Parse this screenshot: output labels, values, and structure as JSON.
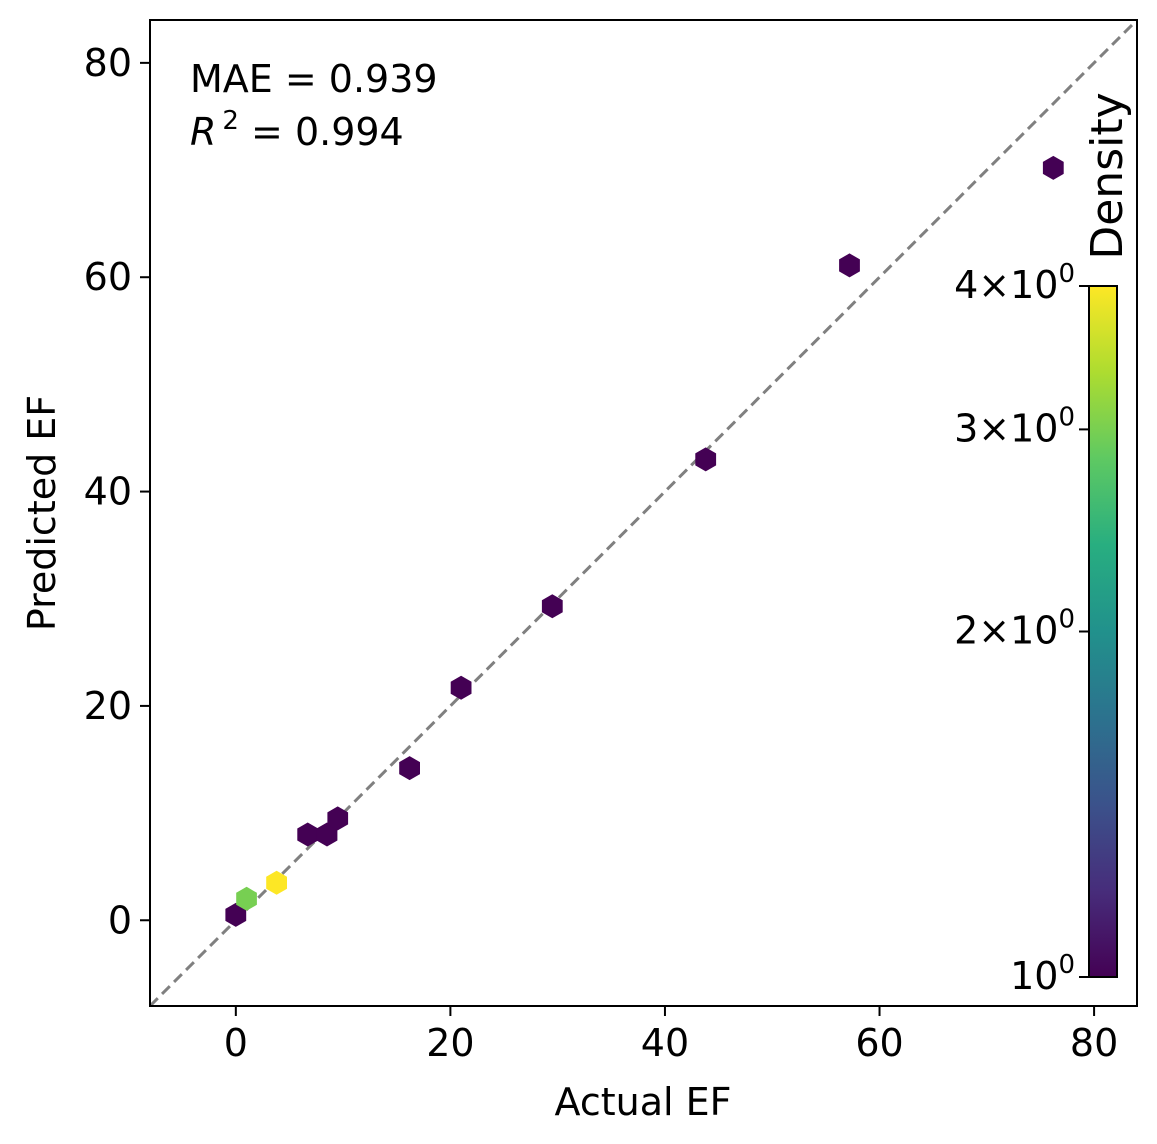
{
  "chart_data": {
    "type": "hexbin",
    "xlabel": "Actual EF",
    "ylabel": "Predicted EF",
    "xlim": [
      -8,
      84
    ],
    "ylim": [
      -8,
      84
    ],
    "xticks": [
      0,
      20,
      40,
      60,
      80
    ],
    "yticks": [
      0,
      20,
      40,
      60,
      80
    ],
    "xtick_labels": [
      "0",
      "20",
      "40",
      "60",
      "80"
    ],
    "ytick_labels": [
      "0",
      "20",
      "40",
      "60",
      "80"
    ],
    "annotations": {
      "mae": "MAE = 0.939",
      "r2_symbol": "R",
      "r2_exp": "2",
      "r2_value": " = 0.994"
    },
    "reference_line": {
      "style": "dashed",
      "color": "#808080",
      "from": [
        -8,
        -8
      ],
      "to": [
        84,
        84
      ]
    },
    "colorbar": {
      "title": "Density",
      "scale": "log",
      "range": [
        1,
        4
      ],
      "ticks": [
        {
          "value": 1,
          "base": "10",
          "exp": "0",
          "mult": ""
        },
        {
          "value": 2,
          "base": "10",
          "exp": "0",
          "mult": "2×"
        },
        {
          "value": 3,
          "base": "10",
          "exp": "0",
          "mult": "3×"
        },
        {
          "value": 4,
          "base": "10",
          "exp": "0",
          "mult": "4×"
        }
      ],
      "colormap": "viridis",
      "position": "right"
    },
    "bins": [
      {
        "x": 0.0,
        "y": 0.5,
        "count": 1
      },
      {
        "x": 1.0,
        "y": 2.0,
        "count": 3
      },
      {
        "x": 3.8,
        "y": 3.5,
        "count": 4
      },
      {
        "x": 6.7,
        "y": 8.0,
        "count": 1
      },
      {
        "x": 8.5,
        "y": 8.0,
        "count": 1
      },
      {
        "x": 9.5,
        "y": 9.5,
        "count": 1
      },
      {
        "x": 16.2,
        "y": 14.2,
        "count": 1
      },
      {
        "x": 21.0,
        "y": 21.7,
        "count": 1
      },
      {
        "x": 29.5,
        "y": 29.3,
        "count": 1
      },
      {
        "x": 43.8,
        "y": 43.0,
        "count": 1
      },
      {
        "x": 57.2,
        "y": 61.1,
        "count": 1
      },
      {
        "x": 76.2,
        "y": 70.2,
        "count": 1
      }
    ]
  }
}
